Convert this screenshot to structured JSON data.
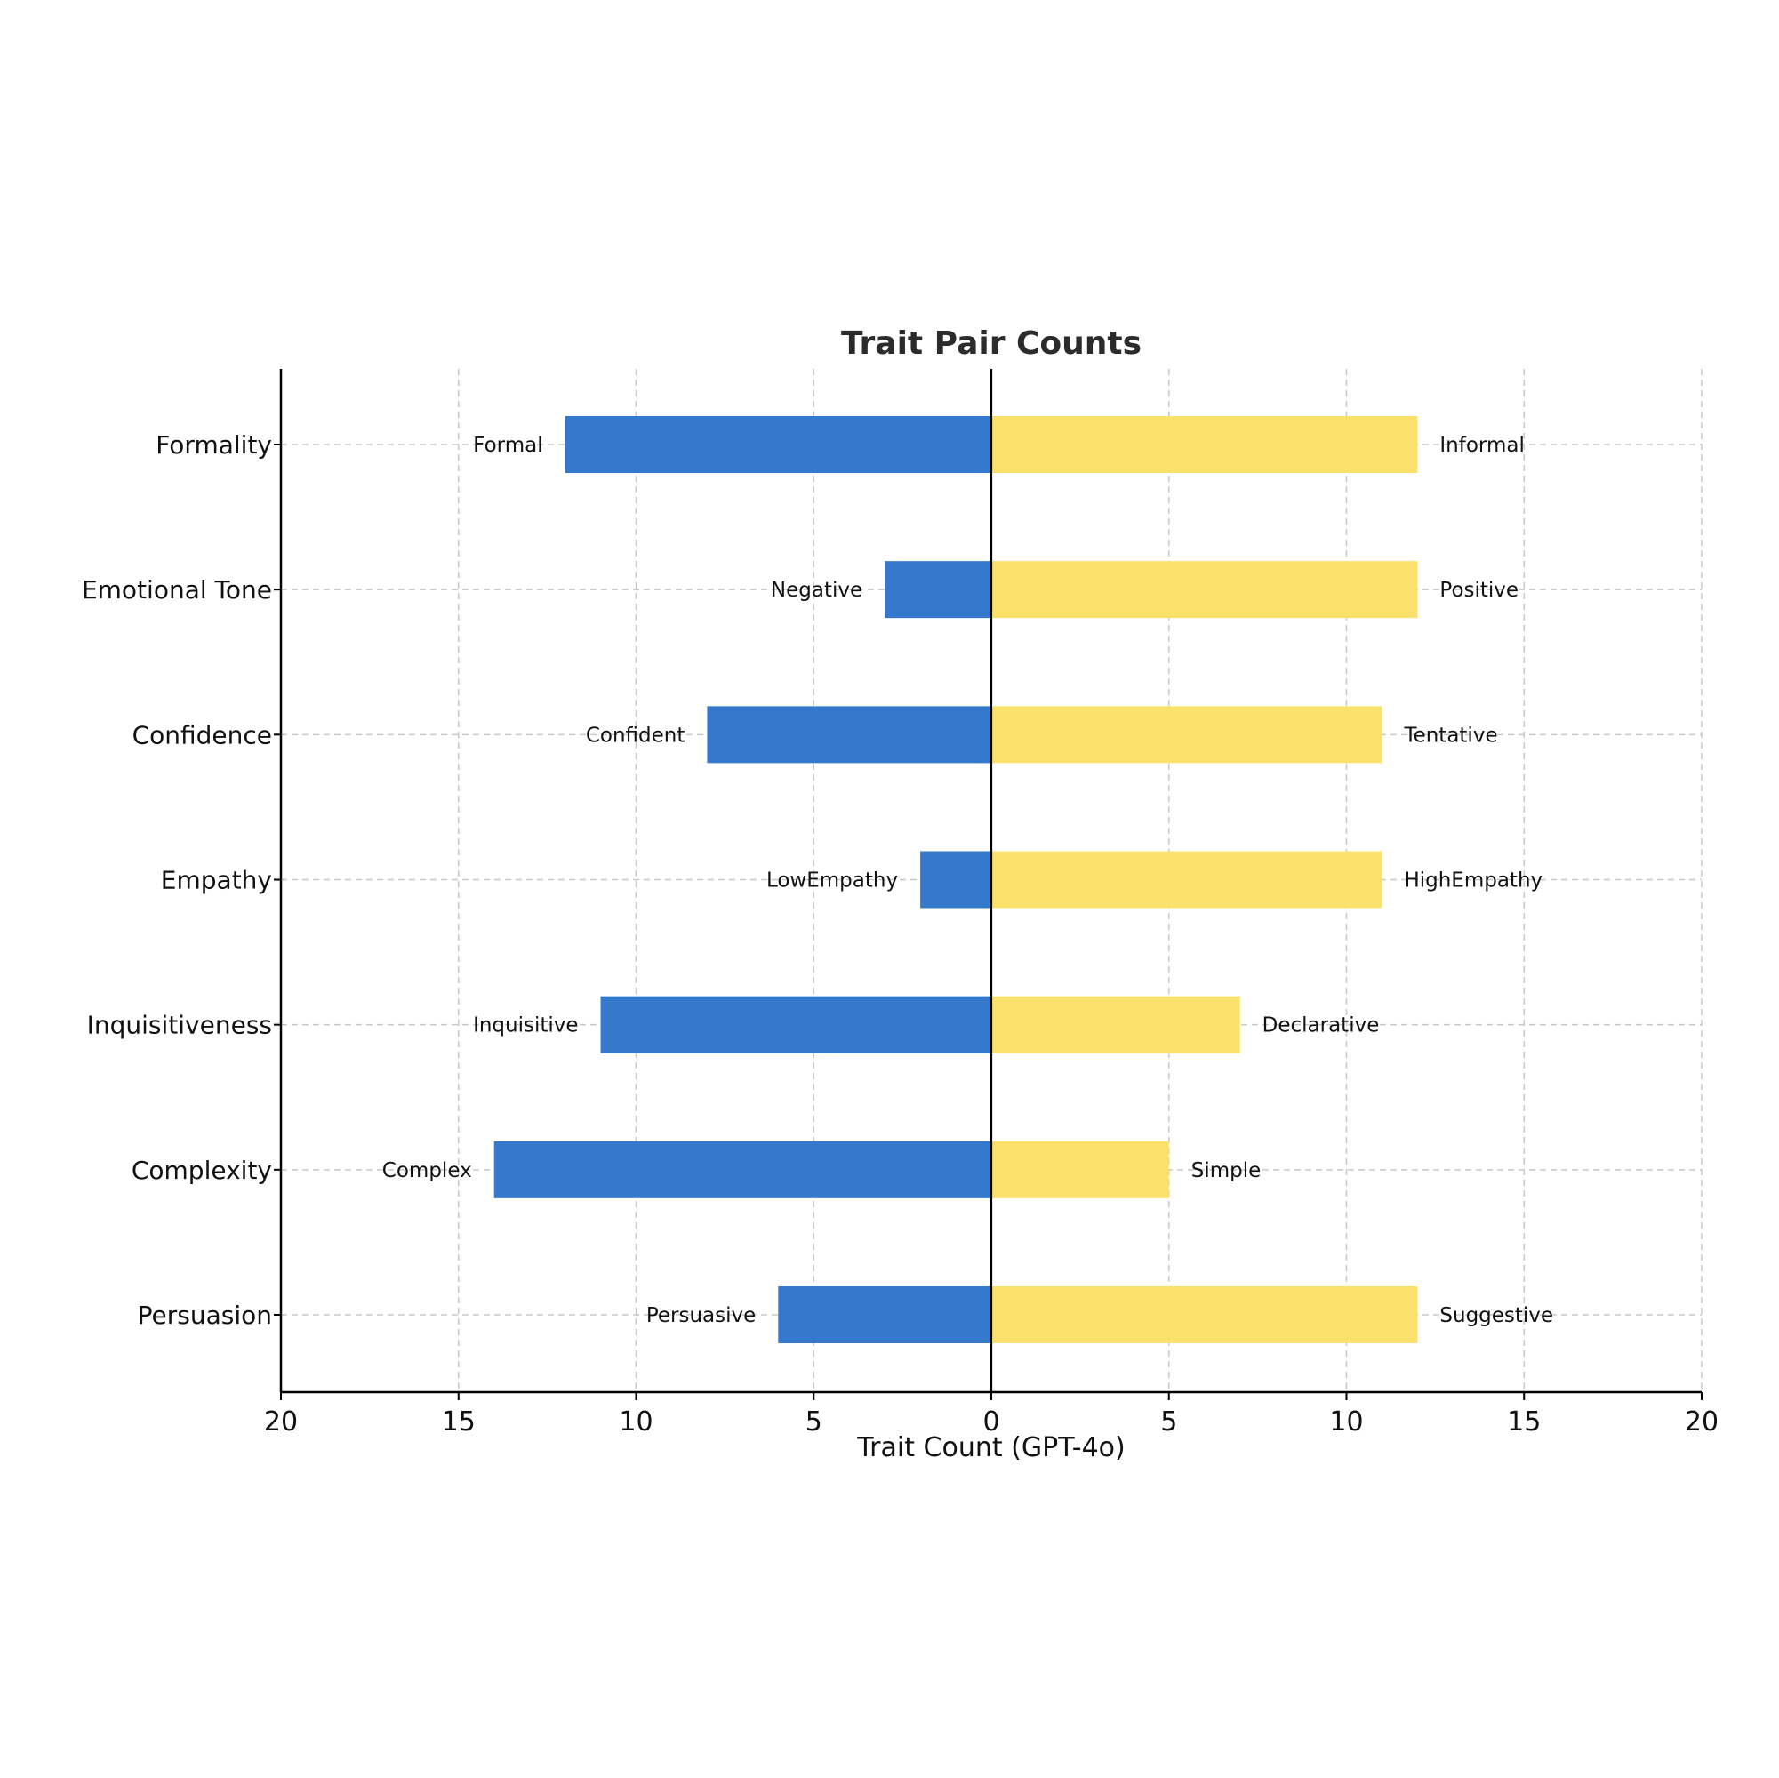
{
  "chart_data": {
    "type": "bar",
    "orientation": "horizontal-diverging",
    "title": "Trait Pair Counts",
    "xlabel": "Trait Count (GPT-4o)",
    "ylabel": "",
    "xlim": [
      -20,
      20
    ],
    "xticks": [
      -20,
      -15,
      -10,
      -5,
      0,
      5,
      10,
      15,
      20
    ],
    "xtick_labels": [
      "20",
      "15",
      "10",
      "5",
      "0",
      "5",
      "10",
      "15",
      "20"
    ],
    "grid": true,
    "legend": "none",
    "colors": {
      "left": "#3579cc",
      "right": "#f9e16b"
    },
    "categories": [
      "Formality",
      "Emotional Tone",
      "Confidence",
      "Empathy",
      "Inquisitiveness",
      "Complexity",
      "Persuasion"
    ],
    "series": [
      {
        "side": "left",
        "values": [
          12,
          3,
          8,
          2,
          11,
          14,
          6
        ],
        "labels": [
          "Formal",
          "Negative",
          "Confident",
          "LowEmpathy",
          "Inquisitive",
          "Complex",
          "Persuasive"
        ]
      },
      {
        "side": "right",
        "values": [
          12,
          12,
          11,
          11,
          7,
          5,
          12
        ],
        "labels": [
          "Informal",
          "Positive",
          "Tentative",
          "HighEmpathy",
          "Declarative",
          "Simple",
          "Suggestive"
        ]
      }
    ]
  }
}
